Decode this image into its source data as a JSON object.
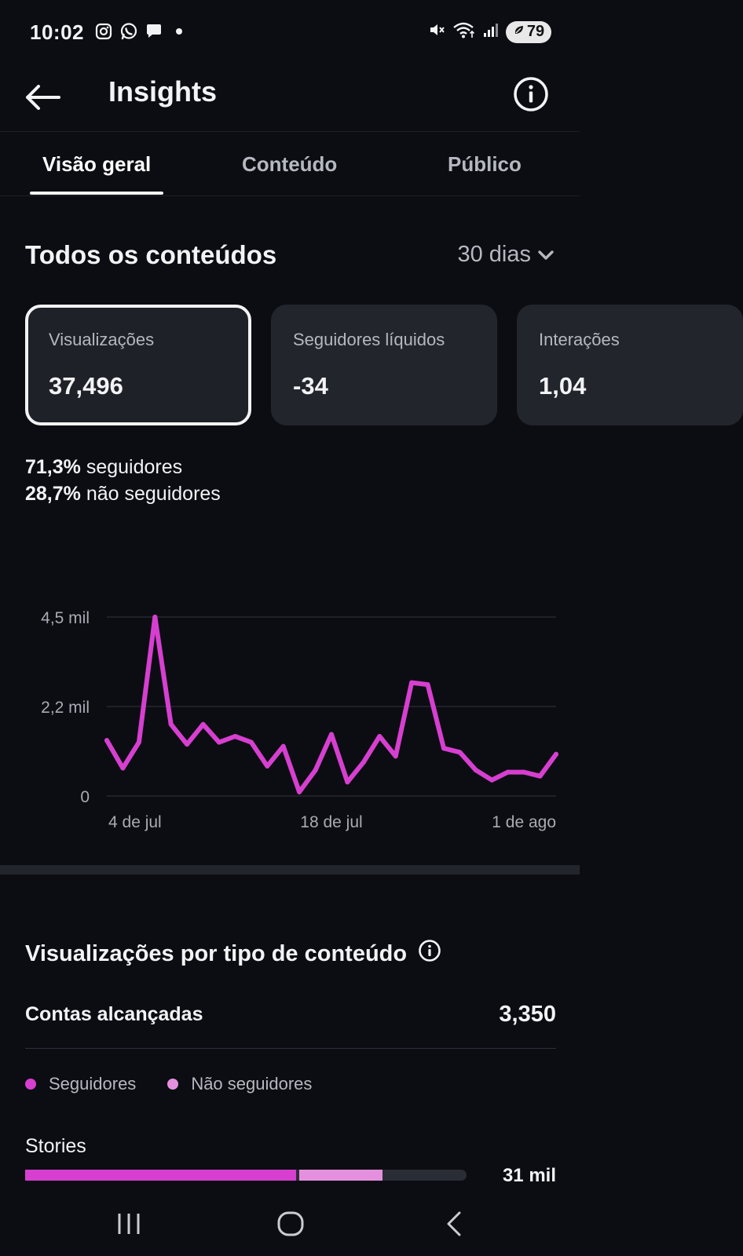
{
  "status_bar": {
    "time": "10:02",
    "battery": "79",
    "icons": [
      "instagram-icon",
      "whatsapp-icon",
      "message-icon",
      "dot-icon"
    ]
  },
  "header": {
    "title": "Insights"
  },
  "tabs": [
    {
      "label": "Visão geral",
      "active": true
    },
    {
      "label": "Conteúdo",
      "active": false
    },
    {
      "label": "Público",
      "active": false
    }
  ],
  "overview": {
    "section_title": "Todos os conteúdos",
    "range_label": "30 dias",
    "cards": [
      {
        "label": "Visualizações",
        "value": "37,496",
        "selected": true
      },
      {
        "label": "Seguidores líquidos",
        "value": "-34",
        "selected": false
      },
      {
        "label": "Interações",
        "value": "1,04",
        "selected": false
      }
    ],
    "split": {
      "followers_pct": "71,3%",
      "followers_text": "seguidores",
      "nonfollowers_pct": "28,7%",
      "nonfollowers_text": "não seguidores"
    }
  },
  "chart_data": {
    "type": "line",
    "title": "",
    "xlabel": "",
    "ylabel": "",
    "ylim": [
      0,
      4500
    ],
    "y_ticks": [
      {
        "value": 0,
        "label": "0"
      },
      {
        "value": 2250,
        "label": "2,2 mil"
      },
      {
        "value": 4500,
        "label": "4,5 mil"
      }
    ],
    "x_ticks": [
      {
        "index": 0,
        "label": "4 de jul"
      },
      {
        "index": 14,
        "label": "18 de jul"
      },
      {
        "index": 28,
        "label": "1 de ago"
      }
    ],
    "color": "#d63fd0",
    "grid": true,
    "values": [
      1400,
      700,
      1350,
      4500,
      1800,
      1300,
      1800,
      1350,
      1500,
      1350,
      750,
      1250,
      100,
      650,
      1550,
      350,
      850,
      1500,
      1000,
      2850,
      2800,
      1200,
      1100,
      650,
      400,
      600,
      600,
      500,
      1050
    ]
  },
  "content_breakdown": {
    "title": "Visualizações por tipo de conteúdo",
    "reach_label": "Contas alcançadas",
    "reach_value": "3,350",
    "legend": [
      {
        "label": "Seguidores",
        "color": "#d63fd0"
      },
      {
        "label": "Não seguidores",
        "color": "#e590df"
      }
    ],
    "stories": {
      "label": "Stories",
      "value": "31 mil",
      "followers_share": 0.617,
      "nonfollowers_share": 0.193
    }
  },
  "nav_bar": {
    "buttons": [
      "recents-icon",
      "home-icon",
      "back-nav-icon"
    ]
  }
}
